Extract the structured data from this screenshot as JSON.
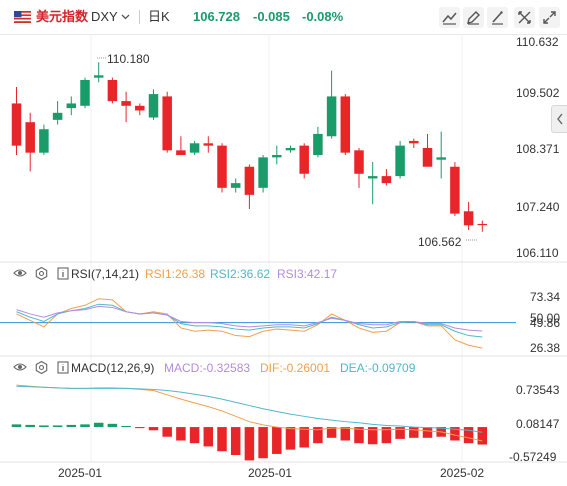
{
  "header": {
    "name": "美元指数",
    "symbol": "DXY",
    "period": "日K",
    "price": "106.728",
    "change": "-0.085",
    "change_pct": "-0.08%"
  },
  "rsi_panel": {
    "title": "RSI(7,14,21)",
    "rsi1": "RSI1:26.38",
    "rsi2": "RSI2:36.62",
    "rsi3": "RSI3:42.17"
  },
  "macd_panel": {
    "title": "MACD(12,26,9)",
    "macd": "MACD:-0.32583",
    "dif": "DIF:-0.26001",
    "dea": "DEA:-0.09709"
  },
  "colors": {
    "up": "#1a9b6a",
    "down": "#e8262a",
    "rsi1": "#f0a050",
    "rsi2": "#4fb8c8",
    "rsi3": "#b48be0",
    "dif": "#f0a050",
    "dea": "#4fb8c8",
    "level_line": "#2f8fd8"
  },
  "chart_data": [
    {
      "type": "candlestick",
      "price_labels": [
        "110.632",
        "109.502",
        "108.371",
        "107.240",
        "106.110"
      ],
      "ylim": [
        106.11,
        110.632
      ],
      "high_marker": "110.180",
      "low_marker": "106.562",
      "x_tick_labels": [
        "2025-01",
        "2025-01",
        "2025-02"
      ],
      "candles": [
        {
          "o": 109.3,
          "h": 109.65,
          "l": 108.2,
          "c": 108.4
        },
        {
          "o": 108.9,
          "h": 109.1,
          "l": 107.85,
          "c": 108.25
        },
        {
          "o": 108.25,
          "h": 108.85,
          "l": 108.2,
          "c": 108.75
        },
        {
          "o": 108.95,
          "h": 109.35,
          "l": 108.85,
          "c": 109.1
        },
        {
          "o": 109.2,
          "h": 109.45,
          "l": 109.05,
          "c": 109.3
        },
        {
          "o": 109.25,
          "h": 109.85,
          "l": 109.2,
          "c": 109.8
        },
        {
          "o": 109.85,
          "h": 110.18,
          "l": 109.75,
          "c": 109.9
        },
        {
          "o": 109.8,
          "h": 109.85,
          "l": 109.3,
          "c": 109.35
        },
        {
          "o": 109.35,
          "h": 109.55,
          "l": 108.9,
          "c": 109.25
        },
        {
          "o": 109.25,
          "h": 109.3,
          "l": 109.05,
          "c": 109.15
        },
        {
          "o": 109.0,
          "h": 109.6,
          "l": 108.95,
          "c": 109.5
        },
        {
          "o": 109.45,
          "h": 109.55,
          "l": 108.25,
          "c": 108.3
        },
        {
          "o": 108.3,
          "h": 108.6,
          "l": 108.2,
          "c": 108.2
        },
        {
          "o": 108.25,
          "h": 108.5,
          "l": 108.2,
          "c": 108.45
        },
        {
          "o": 108.45,
          "h": 108.6,
          "l": 108.25,
          "c": 108.4
        },
        {
          "o": 108.4,
          "h": 108.45,
          "l": 107.4,
          "c": 107.5
        },
        {
          "o": 107.5,
          "h": 107.7,
          "l": 107.4,
          "c": 107.6
        },
        {
          "o": 107.95,
          "h": 108.0,
          "l": 107.05,
          "c": 107.35
        },
        {
          "o": 107.5,
          "h": 108.2,
          "l": 107.4,
          "c": 108.15
        },
        {
          "o": 108.15,
          "h": 108.4,
          "l": 108.0,
          "c": 108.2
        },
        {
          "o": 108.3,
          "h": 108.4,
          "l": 108.25,
          "c": 108.35
        },
        {
          "o": 108.4,
          "h": 108.45,
          "l": 107.7,
          "c": 107.8
        },
        {
          "o": 108.2,
          "h": 108.8,
          "l": 108.15,
          "c": 108.65
        },
        {
          "o": 108.6,
          "h": 110.0,
          "l": 108.55,
          "c": 109.45
        },
        {
          "o": 109.45,
          "h": 109.5,
          "l": 108.2,
          "c": 108.25
        },
        {
          "o": 108.3,
          "h": 108.35,
          "l": 107.5,
          "c": 107.8
        },
        {
          "o": 107.7,
          "h": 108.05,
          "l": 107.15,
          "c": 107.75
        },
        {
          "o": 107.75,
          "h": 107.9,
          "l": 107.55,
          "c": 107.6
        },
        {
          "o": 107.75,
          "h": 108.5,
          "l": 107.7,
          "c": 108.4
        },
        {
          "o": 108.5,
          "h": 108.55,
          "l": 108.35,
          "c": 108.45
        },
        {
          "o": 108.35,
          "h": 108.65,
          "l": 107.95,
          "c": 107.95
        },
        {
          "o": 108.1,
          "h": 108.7,
          "l": 107.7,
          "c": 108.15
        },
        {
          "o": 107.95,
          "h": 108.05,
          "l": 106.9,
          "c": 106.95
        },
        {
          "o": 107.0,
          "h": 107.2,
          "l": 106.6,
          "c": 106.7
        },
        {
          "o": 106.73,
          "h": 106.8,
          "l": 106.562,
          "c": 106.728
        }
      ]
    },
    {
      "type": "line",
      "title": "RSI(7,14,21)",
      "y_tick_labels": [
        "73.34",
        "50.00",
        "49.86",
        "26.38"
      ],
      "ylim": [
        20,
        82
      ],
      "level": 50,
      "series": [
        {
          "name": "RSI1",
          "values": [
            58,
            52,
            46,
            58,
            63,
            66,
            72,
            71,
            60,
            58,
            60,
            58,
            45,
            42,
            43,
            42,
            38,
            37,
            42,
            44,
            43,
            42,
            48,
            58,
            52,
            45,
            41,
            42,
            50,
            51,
            47,
            47,
            34,
            29,
            26.38
          ]
        },
        {
          "name": "RSI2",
          "values": [
            60,
            55,
            51,
            58,
            61,
            63,
            67,
            66,
            60,
            58,
            59,
            57,
            49,
            47,
            47,
            46,
            44,
            43,
            45,
            46,
            46,
            45,
            49,
            55,
            52,
            48,
            45,
            46,
            50,
            51,
            48,
            48,
            42,
            38,
            36.62
          ]
        },
        {
          "name": "RSI3",
          "values": [
            62,
            58,
            55,
            59,
            61,
            62,
            65,
            64,
            60,
            58,
            59,
            57,
            51,
            50,
            50,
            49,
            47,
            46,
            47,
            48,
            48,
            47,
            50,
            54,
            52,
            49,
            48,
            48,
            51,
            51,
            49,
            49,
            45,
            43,
            42.17
          ]
        }
      ]
    },
    {
      "type": "bar",
      "title": "MACD(12,26,9)",
      "y_tick_labels": [
        "0.73543",
        "0.08147",
        "-0.57249"
      ],
      "ylim": [
        -0.65,
        0.95
      ],
      "histogram": [
        0.05,
        0.04,
        0.03,
        0.03,
        0.04,
        0.05,
        0.08,
        0.06,
        0.02,
        -0.02,
        -0.06,
        -0.18,
        -0.25,
        -0.3,
        -0.36,
        -0.45,
        -0.52,
        -0.62,
        -0.58,
        -0.5,
        -0.42,
        -0.38,
        -0.3,
        -0.2,
        -0.25,
        -0.3,
        -0.32,
        -0.3,
        -0.22,
        -0.2,
        -0.2,
        -0.18,
        -0.25,
        -0.3,
        -0.32583
      ],
      "series": [
        {
          "name": "DIF",
          "values": [
            0.78,
            0.76,
            0.74,
            0.73,
            0.72,
            0.72,
            0.73,
            0.73,
            0.72,
            0.7,
            0.68,
            0.6,
            0.52,
            0.45,
            0.38,
            0.3,
            0.2,
            0.1,
            0.04,
            0.0,
            -0.03,
            -0.04,
            -0.05,
            -0.02,
            -0.02,
            -0.04,
            -0.05,
            -0.05,
            -0.04,
            -0.05,
            -0.07,
            -0.09,
            -0.15,
            -0.2,
            -0.26001
          ]
        },
        {
          "name": "DEA",
          "values": [
            0.76,
            0.75,
            0.74,
            0.73,
            0.72,
            0.72,
            0.72,
            0.72,
            0.72,
            0.71,
            0.7,
            0.68,
            0.65,
            0.61,
            0.57,
            0.52,
            0.46,
            0.4,
            0.34,
            0.29,
            0.24,
            0.2,
            0.16,
            0.13,
            0.1,
            0.08,
            0.05,
            0.03,
            0.02,
            0.0,
            -0.01,
            -0.02,
            -0.04,
            -0.06,
            -0.09709
          ]
        }
      ]
    }
  ]
}
